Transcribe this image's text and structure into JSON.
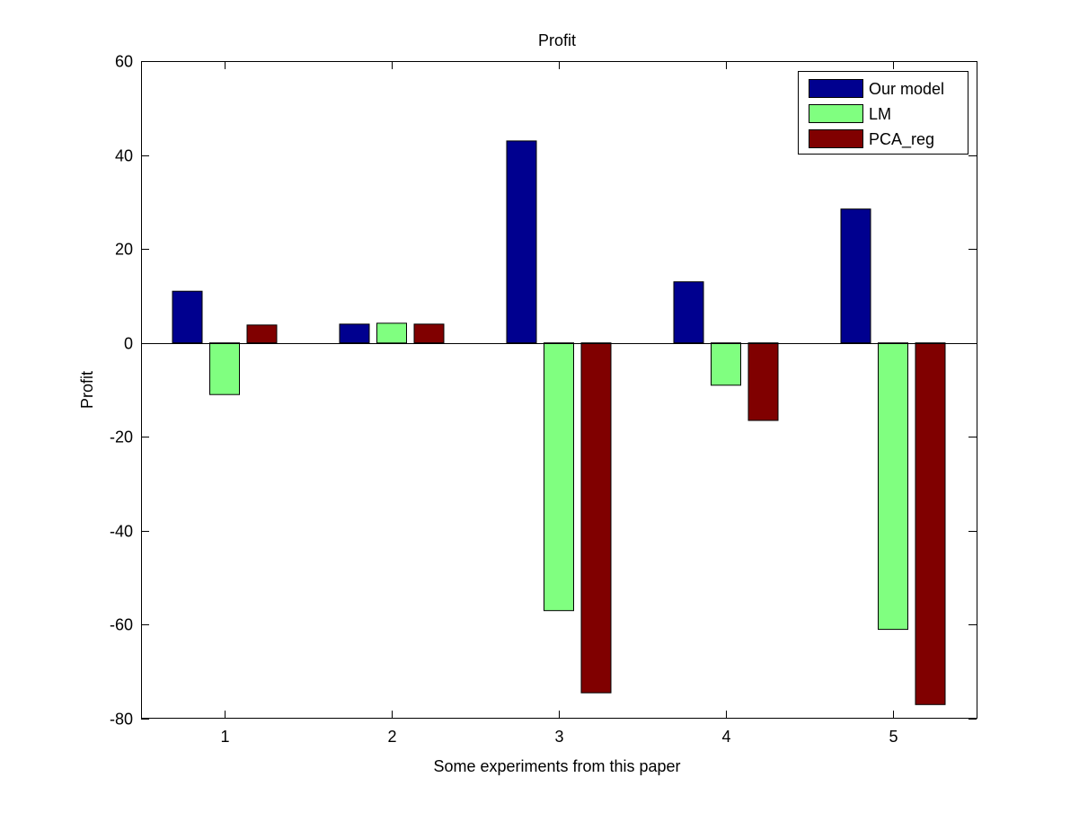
{
  "chart_data": {
    "type": "bar",
    "title": "Profit",
    "xlabel": "Some experiments from this paper",
    "ylabel": "Profit",
    "categories": [
      "1",
      "2",
      "3",
      "4",
      "5"
    ],
    "ylim": [
      -80,
      60
    ],
    "yticks": [
      -80,
      -60,
      -40,
      -20,
      0,
      20,
      40,
      60
    ],
    "ytick_labels": [
      "-80",
      "-60",
      "-40",
      "-20",
      "0",
      "20",
      "40",
      "60"
    ],
    "grid": false,
    "legend_position": "top-right",
    "series": [
      {
        "name": "Our model",
        "color": "#00008f",
        "values": [
          11,
          4,
          43,
          13,
          28.5
        ]
      },
      {
        "name": "LM",
        "color": "#80ff80",
        "values": [
          -11,
          4.2,
          -57,
          -9,
          -61
        ]
      },
      {
        "name": "PCA_reg",
        "color": "#800000",
        "values": [
          3.8,
          4,
          -74.5,
          -16.5,
          -77
        ]
      }
    ]
  }
}
